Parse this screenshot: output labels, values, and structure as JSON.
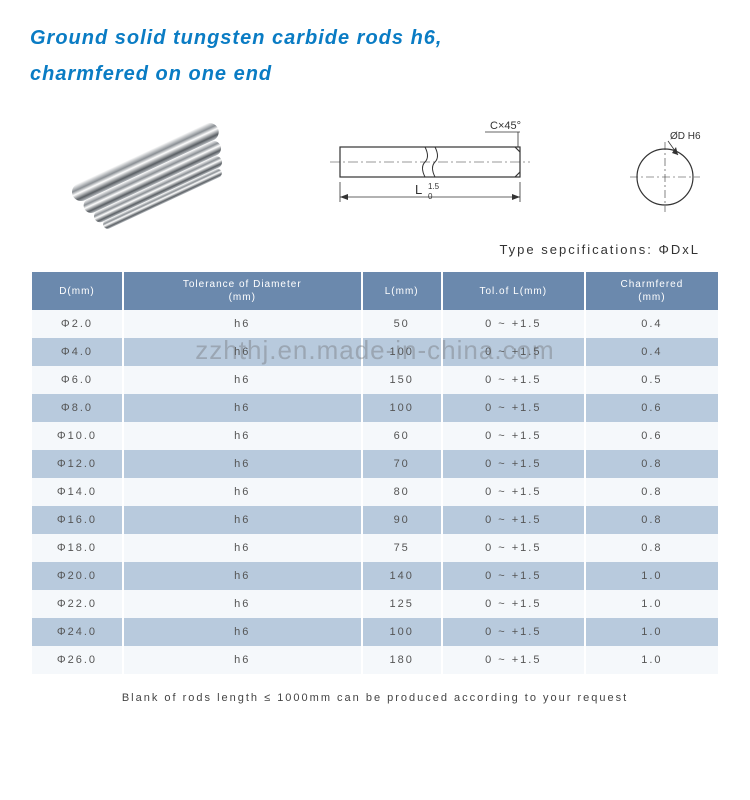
{
  "title_line1": "Ground solid tungsten carbide rods h6,",
  "title_line2": "charmfered on one end",
  "watermark": "zzhthj.en.made-in-china.com",
  "spec_label": "Type sepcifications:  ΦDxL",
  "tech_labels": {
    "chamfer": "C×45°",
    "length": "L",
    "length_tol_sup": "1.5",
    "length_tol_sub": "0",
    "diameter": "ØD H6"
  },
  "colors": {
    "title": "#0a7cc4",
    "header_bg": "#6b89ad",
    "row_odd": "#f5f8fb",
    "row_even": "#b8cadd"
  },
  "table": {
    "headers": [
      "D(mm)",
      "Tolerance of Diameter\n(mm)",
      "L(mm)",
      "Tol.of L(mm)",
      "Charmfered\n(mm)"
    ],
    "rows": [
      [
        "Φ2.0",
        "h6",
        "50",
        "0 ~ +1.5",
        "0.4"
      ],
      [
        "Φ4.0",
        "h6",
        "100",
        "0 ~ +1.5",
        "0.4"
      ],
      [
        "Φ6.0",
        "h6",
        "150",
        "0 ~ +1.5",
        "0.5"
      ],
      [
        "Φ8.0",
        "h6",
        "100",
        "0 ~ +1.5",
        "0.6"
      ],
      [
        "Φ10.0",
        "h6",
        "60",
        "0 ~ +1.5",
        "0.6"
      ],
      [
        "Φ12.0",
        "h6",
        "70",
        "0 ~ +1.5",
        "0.8"
      ],
      [
        "Φ14.0",
        "h6",
        "80",
        "0 ~ +1.5",
        "0.8"
      ],
      [
        "Φ16.0",
        "h6",
        "90",
        "0 ~ +1.5",
        "0.8"
      ],
      [
        "Φ18.0",
        "h6",
        "75",
        "0 ~ +1.5",
        "0.8"
      ],
      [
        "Φ20.0",
        "h6",
        "140",
        "0 ~ +1.5",
        "1.0"
      ],
      [
        "Φ22.0",
        "h6",
        "125",
        "0 ~ +1.5",
        "1.0"
      ],
      [
        "Φ24.0",
        "h6",
        "100",
        "0 ~ +1.5",
        "1.0"
      ],
      [
        "Φ26.0",
        "h6",
        "180",
        "0 ~ +1.5",
        "1.0"
      ]
    ]
  },
  "footer": "Blank of rods length ≤ 1000mm can be produced according to your request"
}
